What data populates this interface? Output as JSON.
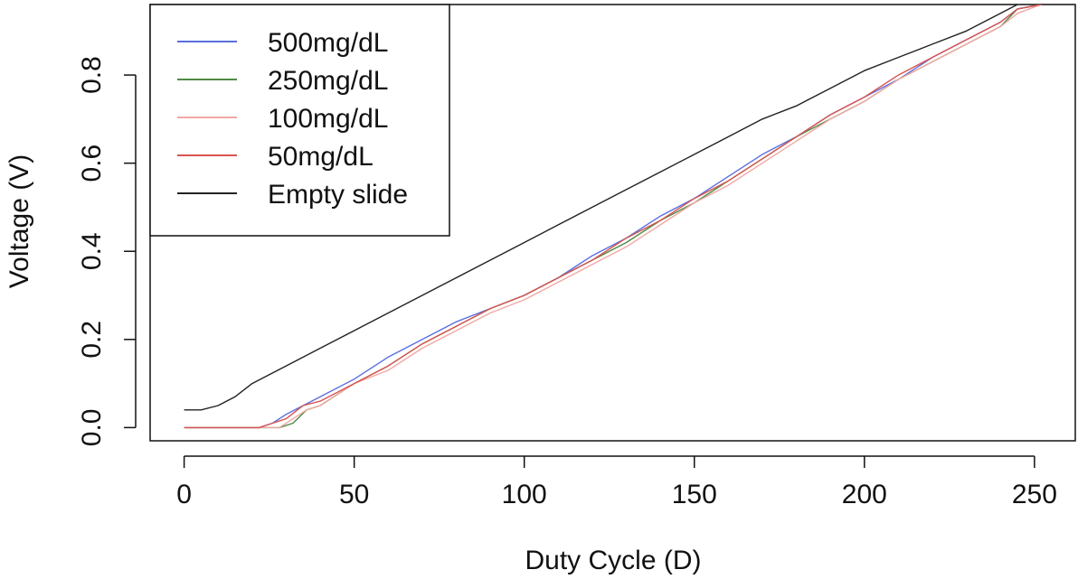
{
  "chart_data": {
    "type": "line",
    "title": "",
    "xlabel": "Duty Cycle (D)",
    "ylabel": "Voltage (V)",
    "xlim": [
      -10,
      262
    ],
    "ylim": [
      -0.03,
      0.96
    ],
    "x_ticks": [
      0,
      50,
      100,
      150,
      200,
      250
    ],
    "x_tick_labels": [
      "0",
      "50",
      "100",
      "150",
      "200",
      "250"
    ],
    "y_ticks": [
      0.0,
      0.2,
      0.4,
      0.6,
      0.8
    ],
    "y_tick_labels": [
      "0.0",
      "0.2",
      "0.4",
      "0.6",
      "0.8"
    ],
    "grid": false,
    "legend_position": "top-left",
    "series": [
      {
        "name": "500mg/dL",
        "color": "#5a6fe0",
        "x": [
          0,
          14,
          22,
          26,
          30,
          35,
          40,
          50,
          60,
          70,
          80,
          90,
          100,
          110,
          120,
          130,
          140,
          150,
          160,
          170,
          180,
          190,
          200,
          210,
          220,
          230,
          240,
          245,
          252
        ],
        "y": [
          0.0,
          0.0,
          0.0,
          0.01,
          0.03,
          0.05,
          0.07,
          0.11,
          0.16,
          0.2,
          0.24,
          0.27,
          0.3,
          0.34,
          0.39,
          0.43,
          0.48,
          0.52,
          0.57,
          0.62,
          0.66,
          0.71,
          0.75,
          0.79,
          0.84,
          0.88,
          0.92,
          0.95,
          0.96
        ]
      },
      {
        "name": "250mg/dL",
        "color": "#4f8a45",
        "x": [
          0,
          14,
          22,
          28,
          32,
          36,
          40,
          50,
          60,
          70,
          80,
          90,
          100,
          110,
          120,
          130,
          140,
          150,
          160,
          170,
          180,
          190,
          200,
          210,
          220,
          230,
          240,
          245,
          252
        ],
        "y": [
          0.0,
          0.0,
          0.0,
          0.0,
          0.01,
          0.04,
          0.05,
          0.1,
          0.14,
          0.19,
          0.23,
          0.27,
          0.3,
          0.34,
          0.38,
          0.42,
          0.47,
          0.51,
          0.56,
          0.61,
          0.66,
          0.7,
          0.74,
          0.79,
          0.83,
          0.87,
          0.91,
          0.95,
          0.96
        ]
      },
      {
        "name": "100mg/dL",
        "color": "#f0a8a2",
        "x": [
          0,
          14,
          22,
          28,
          32,
          36,
          40,
          50,
          60,
          70,
          80,
          90,
          100,
          110,
          120,
          130,
          140,
          150,
          160,
          170,
          180,
          190,
          200,
          210,
          220,
          230,
          240,
          245,
          252
        ],
        "y": [
          0.0,
          0.0,
          0.0,
          0.0,
          0.02,
          0.04,
          0.05,
          0.1,
          0.13,
          0.18,
          0.22,
          0.26,
          0.29,
          0.33,
          0.37,
          0.41,
          0.46,
          0.51,
          0.55,
          0.6,
          0.65,
          0.7,
          0.74,
          0.79,
          0.83,
          0.87,
          0.91,
          0.94,
          0.96
        ]
      },
      {
        "name": "50mg/dL",
        "color": "#d9534f",
        "x": [
          0,
          14,
          22,
          26,
          30,
          35,
          40,
          50,
          60,
          70,
          80,
          90,
          100,
          110,
          120,
          130,
          140,
          150,
          160,
          170,
          180,
          190,
          200,
          210,
          220,
          230,
          240,
          245,
          252
        ],
        "y": [
          0.0,
          0.0,
          0.0,
          0.01,
          0.02,
          0.05,
          0.06,
          0.1,
          0.14,
          0.19,
          0.23,
          0.27,
          0.3,
          0.34,
          0.38,
          0.43,
          0.47,
          0.52,
          0.56,
          0.61,
          0.66,
          0.71,
          0.75,
          0.8,
          0.84,
          0.88,
          0.92,
          0.95,
          0.96
        ]
      },
      {
        "name": "Empty slide",
        "color": "#222222",
        "x": [
          0,
          5,
          10,
          15,
          20,
          30,
          40,
          50,
          60,
          70,
          80,
          90,
          100,
          110,
          120,
          130,
          140,
          150,
          160,
          170,
          180,
          190,
          200,
          210,
          220,
          230,
          240,
          245,
          252
        ],
        "y": [
          0.04,
          0.04,
          0.05,
          0.07,
          0.1,
          0.14,
          0.18,
          0.22,
          0.26,
          0.3,
          0.34,
          0.38,
          0.42,
          0.46,
          0.5,
          0.54,
          0.58,
          0.62,
          0.66,
          0.7,
          0.73,
          0.77,
          0.81,
          0.84,
          0.87,
          0.9,
          0.94,
          0.96,
          0.97
        ]
      }
    ]
  }
}
